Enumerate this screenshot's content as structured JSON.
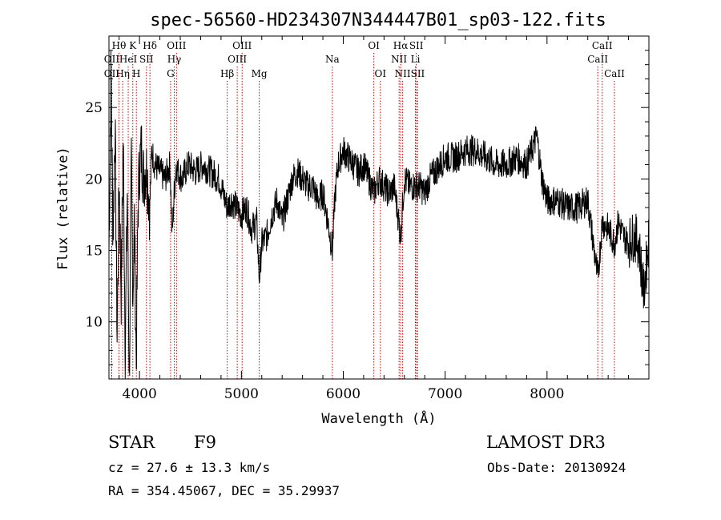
{
  "chart_data": {
    "type": "line",
    "title": "spec-56560-HD234307N344447B01_sp03-122.fits",
    "xlabel": "Wavelength (Å)",
    "ylabel": "Flux (relative)",
    "xlim": [
      3700,
      9000
    ],
    "ylim": [
      6,
      30
    ],
    "x_ticks": [
      4000,
      5000,
      6000,
      7000,
      8000
    ],
    "y_ticks": [
      10,
      15,
      20,
      25
    ],
    "series": [
      {
        "name": "flux",
        "x": [
          3700,
          3720,
          3740,
          3760,
          3780,
          3800,
          3820,
          3840,
          3860,
          3880,
          3900,
          3920,
          3935,
          3950,
          3968,
          3985,
          4000,
          4020,
          4040,
          4060,
          4080,
          4101,
          4120,
          4150,
          4200,
          4250,
          4300,
          4320,
          4340,
          4360,
          4380,
          4420,
          4480,
          4550,
          4620,
          4700,
          4780,
          4861,
          4900,
          4950,
          5000,
          5050,
          5100,
          5150,
          5175,
          5200,
          5250,
          5300,
          5350,
          5400,
          5450,
          5500,
          5550,
          5600,
          5650,
          5700,
          5750,
          5800,
          5850,
          5893,
          5920,
          5950,
          6000,
          6050,
          6100,
          6150,
          6200,
          6250,
          6300,
          6350,
          6400,
          6450,
          6500,
          6563,
          6600,
          6650,
          6700,
          6750,
          6800,
          6850,
          6900,
          6950,
          7000,
          7100,
          7200,
          7300,
          7400,
          7500,
          7600,
          7700,
          7800,
          7850,
          7900,
          7950,
          8000,
          8100,
          8200,
          8300,
          8400,
          8498,
          8542,
          8600,
          8662,
          8700,
          8750,
          8800,
          8850,
          8900,
          8950,
          9000
        ],
        "values": [
          15,
          27,
          16,
          24,
          9,
          20,
          12,
          23,
          8,
          19,
          6,
          21,
          12,
          17,
          7,
          18,
          21,
          22,
          20,
          21,
          20,
          18,
          22,
          21,
          20.5,
          20,
          21,
          16,
          19,
          21,
          20.5,
          20,
          21,
          20.5,
          21,
          20.5,
          20,
          18,
          18.5,
          18,
          17.5,
          18,
          16.5,
          17,
          13,
          15.5,
          16,
          17.5,
          18.5,
          17,
          18.5,
          20,
          20.5,
          20,
          19.5,
          19.5,
          18.5,
          19,
          17,
          15,
          19,
          21,
          22,
          21.5,
          21,
          20.5,
          21,
          20,
          19,
          20,
          19.5,
          19,
          19.5,
          16,
          20,
          19.5,
          19.5,
          19.5,
          19,
          20,
          20.5,
          21,
          21.5,
          21.5,
          22,
          22,
          21.5,
          21,
          21,
          21.5,
          21,
          22,
          23,
          20,
          18.5,
          18.5,
          18,
          18,
          18.5,
          13,
          17,
          16.5,
          15.5,
          17,
          16,
          15.5,
          16,
          15.5,
          12,
          16
        ]
      }
    ],
    "spectral_lines": [
      {
        "label": "OII",
        "wavelength": 3727,
        "row": 2
      },
      {
        "label": "OII",
        "wavelength": 3727,
        "row": 3
      },
      {
        "label": "Hθ",
        "wavelength": 3798,
        "row": 1
      },
      {
        "label": "Hη",
        "wavelength": 3835,
        "row": 3
      },
      {
        "label": "HeI",
        "wavelength": 3889,
        "row": 2
      },
      {
        "label": "K",
        "wavelength": 3934,
        "row": 1
      },
      {
        "label": "SII",
        "wavelength": 4068,
        "row": 2
      },
      {
        "label": "H",
        "wavelength": 3969,
        "row": 3
      },
      {
        "label": "Hδ",
        "wavelength": 4102,
        "row": 1
      },
      {
        "label": "G",
        "wavelength": 4305,
        "row": 3
      },
      {
        "label": "OIII",
        "wavelength": 4363,
        "row": 1
      },
      {
        "label": "Hγ",
        "wavelength": 4341,
        "row": 2
      },
      {
        "label": "Hβ",
        "wavelength": 4861,
        "row": 3
      },
      {
        "label": "OIII",
        "wavelength": 5007,
        "row": 1
      },
      {
        "label": "OIII",
        "wavelength": 4959,
        "row": 2
      },
      {
        "label": "Mg",
        "wavelength": 5175,
        "row": 3
      },
      {
        "label": "Na",
        "wavelength": 5893,
        "row": 2
      },
      {
        "label": "OI",
        "wavelength": 6300,
        "row": 1
      },
      {
        "label": "OI",
        "wavelength": 6364,
        "row": 3
      },
      {
        "label": "Hα",
        "wavelength": 6563,
        "row": 1
      },
      {
        "label": "SII",
        "wavelength": 6717,
        "row": 1
      },
      {
        "label": "NII",
        "wavelength": 6548,
        "row": 2
      },
      {
        "label": "Li",
        "wavelength": 6708,
        "row": 2
      },
      {
        "label": "NII",
        "wavelength": 6583,
        "row": 3
      },
      {
        "label": "SII",
        "wavelength": 6731,
        "row": 3
      },
      {
        "label": "CaII",
        "wavelength": 8542,
        "row": 1
      },
      {
        "label": "CaII",
        "wavelength": 8498,
        "row": 2
      },
      {
        "label": "CaII",
        "wavelength": 8662,
        "row": 3
      }
    ]
  },
  "info": {
    "object_class": "STAR",
    "subclass": "F9",
    "survey": "LAMOST DR3",
    "redshift": "cz = 27.6 ± 13.3 km/s",
    "obs_date": "Obs-Date: 20130924",
    "coords": "RA = 354.45067, DEC =  35.29937"
  },
  "colors": {
    "spectrum": "#000000",
    "line_markers": "#cc0000",
    "background": "#ffffff"
  }
}
